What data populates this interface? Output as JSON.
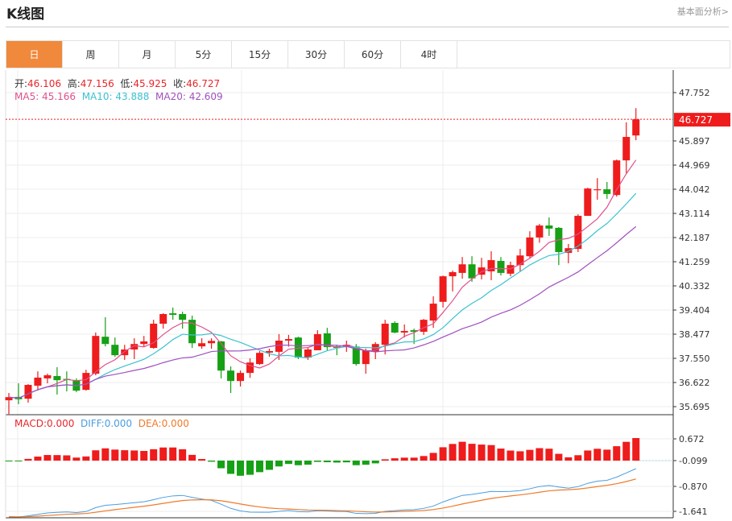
{
  "header": {
    "title": "K线图",
    "link": "基本面分析>"
  },
  "tabs": [
    {
      "label": "日",
      "active": true
    },
    {
      "label": "周"
    },
    {
      "label": "月"
    },
    {
      "label": "5分"
    },
    {
      "label": "15分"
    },
    {
      "label": "30分"
    },
    {
      "label": "60分"
    },
    {
      "label": "4时"
    }
  ],
  "ohlc": {
    "open_label": "开:",
    "open": "46.106",
    "high_label": "高:",
    "high": "47.156",
    "low_label": "低:",
    "low": "45.925",
    "close_label": "收:",
    "close": "46.727"
  },
  "ma": {
    "ma5": "MA5: 45.166",
    "ma10": "MA10: 43.888",
    "ma20": "MA20: 42.609"
  },
  "macd_legend": {
    "macd": "MACD:0.000",
    "diff": "DIFF:0.000",
    "dea": "DEA:0.000"
  },
  "colors": {
    "up": "#ee1c1c",
    "down": "#16a016",
    "ma5": "#e0508c",
    "ma10": "#3cc2d2",
    "ma20": "#a050c0",
    "diff": "#4a9de0",
    "dea": "#f07a2a",
    "active_tab": "#f0893b"
  },
  "chart_data": {
    "type": "candlestick",
    "price_ticks": [
      "47.752",
      "46.727",
      "45.897",
      "44.969",
      "44.042",
      "43.114",
      "42.187",
      "41.259",
      "40.332",
      "39.404",
      "38.477",
      "37.550",
      "36.622",
      "35.695"
    ],
    "price_range": [
      35.695,
      47.752
    ],
    "current_price": "46.727",
    "macd_ticks": [
      "0.672",
      "-0.099",
      "-0.870",
      "-1.641"
    ],
    "candles": [
      [
        35.94,
        36.06,
        36.22,
        35.41
      ],
      [
        36.07,
        35.98,
        36.59,
        35.79
      ],
      [
        36.0,
        36.53,
        36.56,
        35.85
      ],
      [
        36.5,
        36.81,
        37.05,
        36.31
      ],
      [
        36.78,
        36.9,
        36.96,
        36.59
      ],
      [
        36.87,
        36.71,
        37.21,
        36.16
      ],
      [
        36.76,
        36.74,
        37.05,
        36.28
      ],
      [
        36.71,
        36.31,
        36.78,
        36.25
      ],
      [
        36.34,
        36.99,
        37.11,
        36.31
      ],
      [
        36.96,
        38.41,
        38.54,
        36.9
      ],
      [
        38.38,
        38.1,
        39.13,
        38.01
      ],
      [
        38.07,
        37.67,
        38.35,
        37.61
      ],
      [
        37.67,
        37.89,
        38.07,
        37.49
      ],
      [
        37.89,
        38.1,
        38.32,
        37.52
      ],
      [
        38.1,
        38.2,
        38.41,
        38.01
      ],
      [
        37.95,
        38.88,
        39.03,
        37.92
      ],
      [
        38.88,
        39.25,
        39.28,
        38.69
      ],
      [
        39.28,
        39.22,
        39.5,
        39.03
      ],
      [
        39.25,
        39.03,
        39.34,
        38.69
      ],
      [
        39.03,
        38.13,
        39.19,
        37.95
      ],
      [
        38.01,
        38.13,
        38.32,
        37.92
      ],
      [
        38.13,
        38.22,
        38.32,
        37.92
      ],
      [
        38.2,
        37.08,
        38.22,
        36.78
      ],
      [
        37.08,
        36.68,
        37.24,
        36.22
      ],
      [
        36.68,
        36.99,
        37.08,
        36.47
      ],
      [
        36.99,
        37.39,
        37.55,
        36.8
      ],
      [
        37.33,
        37.76,
        37.83,
        37.3
      ],
      [
        37.77,
        37.83,
        37.92,
        37.61
      ],
      [
        37.8,
        38.23,
        38.48,
        37.49
      ],
      [
        38.23,
        38.29,
        38.45,
        38.0
      ],
      [
        38.35,
        37.58,
        38.38,
        37.52
      ],
      [
        37.58,
        37.89,
        37.95,
        37.49
      ],
      [
        37.86,
        38.48,
        38.63,
        37.86
      ],
      [
        38.51,
        37.98,
        38.72,
        37.86
      ],
      [
        38.01,
        37.95,
        38.07,
        37.67
      ],
      [
        37.98,
        38.07,
        38.23,
        37.8
      ],
      [
        38.0,
        37.33,
        38.1,
        37.27
      ],
      [
        37.33,
        37.86,
        37.92,
        36.96
      ],
      [
        37.8,
        38.1,
        38.17,
        37.52
      ],
      [
        38.07,
        38.88,
        39.03,
        37.7
      ],
      [
        38.91,
        38.54,
        38.97,
        38.51
      ],
      [
        38.54,
        38.6,
        38.85,
        38.35
      ],
      [
        38.63,
        38.57,
        38.69,
        38.1
      ],
      [
        38.57,
        39.03,
        39.06,
        38.45
      ],
      [
        39.0,
        39.65,
        39.93,
        38.72
      ],
      [
        39.72,
        40.7,
        40.73,
        39.5
      ],
      [
        40.7,
        40.86,
        40.92,
        40.12
      ],
      [
        40.83,
        41.16,
        41.44,
        40.61
      ],
      [
        41.16,
        40.62,
        41.47,
        40.49
      ],
      [
        40.76,
        41.04,
        41.41,
        40.58
      ],
      [
        40.89,
        41.32,
        41.66,
        40.55
      ],
      [
        41.29,
        40.83,
        41.44,
        40.73
      ],
      [
        40.8,
        41.13,
        41.26,
        40.7
      ],
      [
        41.13,
        41.5,
        41.75,
        40.89
      ],
      [
        41.47,
        42.19,
        42.43,
        41.41
      ],
      [
        42.19,
        42.65,
        42.71,
        41.99
      ],
      [
        42.65,
        42.53,
        42.96,
        42.25
      ],
      [
        42.56,
        41.63,
        42.59,
        41.13
      ],
      [
        41.6,
        41.78,
        41.94,
        41.2
      ],
      [
        41.75,
        43.02,
        43.08,
        41.63
      ],
      [
        43.02,
        44.07,
        44.1,
        43.02
      ],
      [
        44.01,
        44.04,
        44.47,
        43.64
      ],
      [
        44.04,
        43.86,
        44.32,
        43.67
      ],
      [
        43.82,
        45.15,
        45.18,
        43.76
      ],
      [
        45.15,
        46.05,
        46.61,
        44.66
      ],
      [
        46.106,
        46.727,
        47.156,
        45.925
      ]
    ],
    "candle_fields": [
      "open",
      "close",
      "high",
      "low"
    ],
    "indicators": [
      "MA5",
      "MA10",
      "MA20",
      "MACD(12,26,9)"
    ]
  }
}
